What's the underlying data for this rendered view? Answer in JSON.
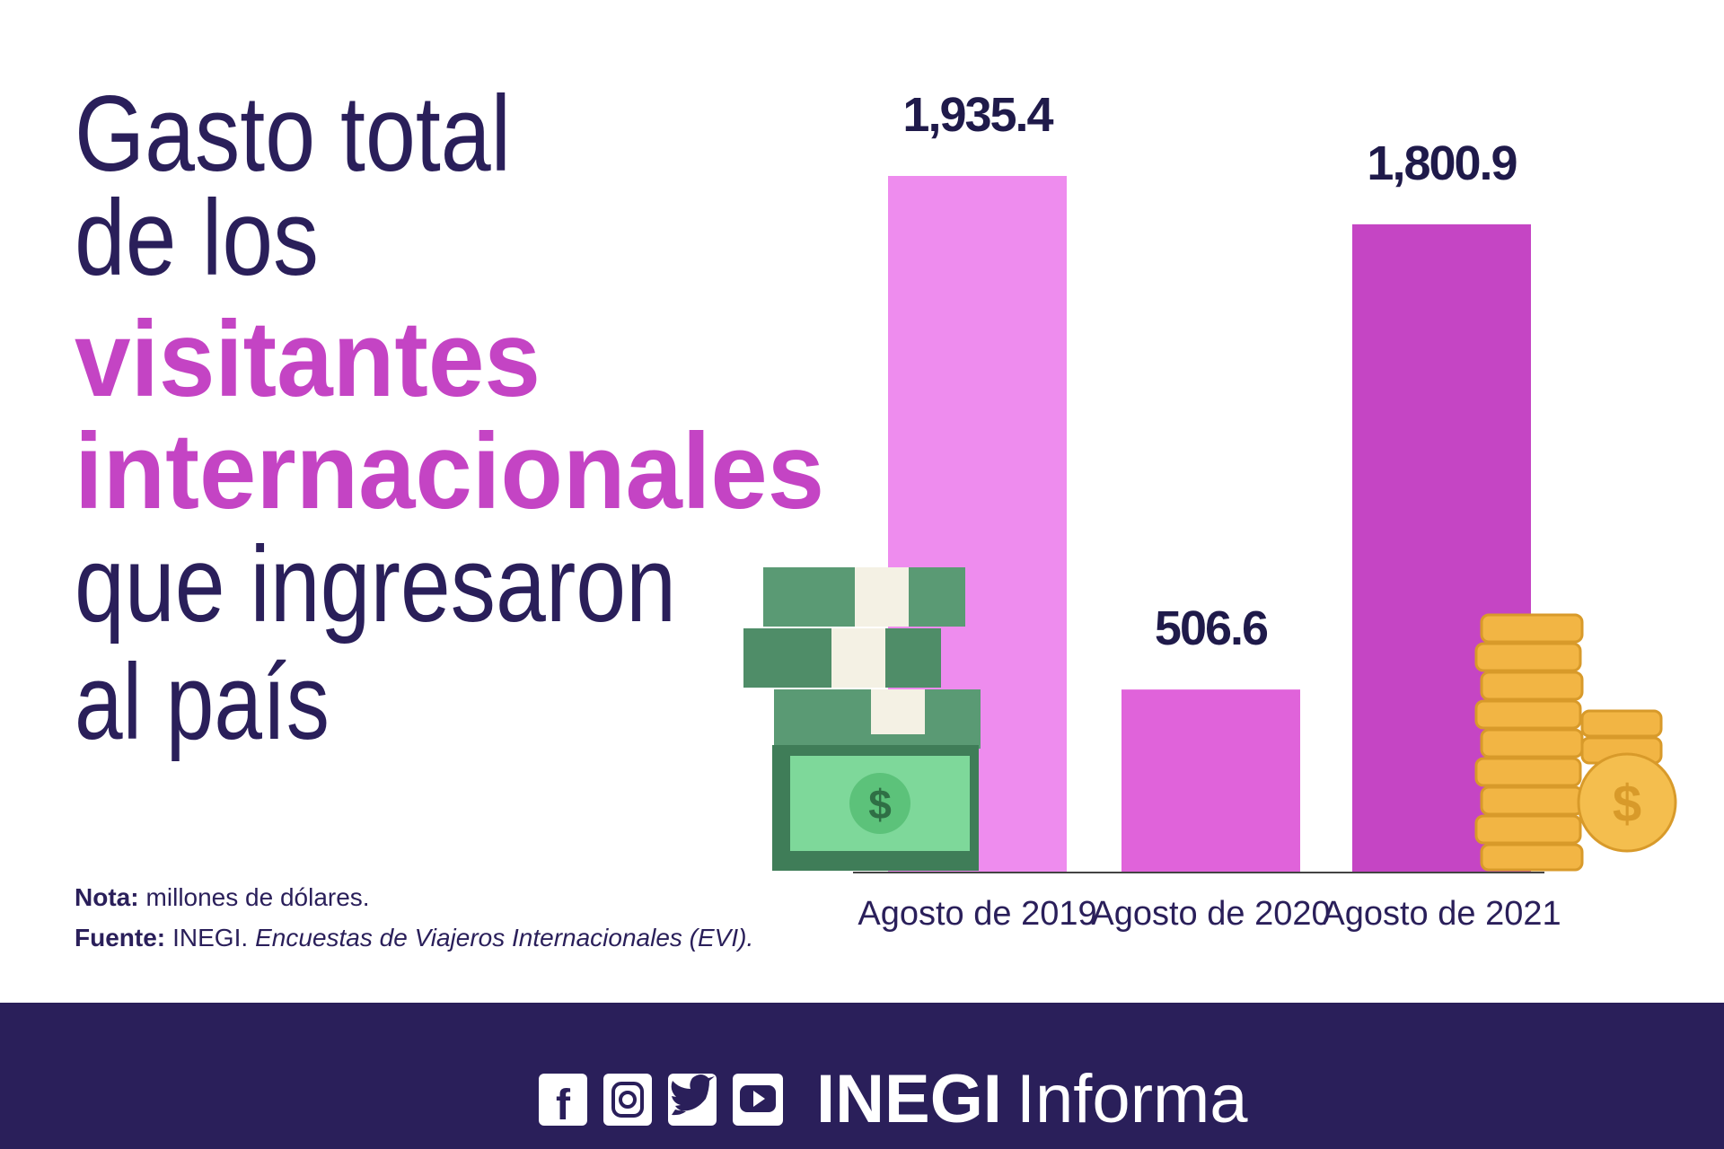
{
  "chart_data": {
    "type": "bar",
    "title_lines": [
      "Gasto total",
      "de los",
      "visitantes",
      "internacionales",
      "que ingresaron",
      "al país"
    ],
    "categories": [
      "Agosto de 2019",
      "Agosto de 2020",
      "Agosto de 2021"
    ],
    "values": [
      1935.4,
      506.6,
      1800.9
    ],
    "value_labels": [
      "1,935.4",
      "506.6",
      "1,800.9"
    ],
    "colors": [
      "#ee8cee",
      "#e063da",
      "#c545c4"
    ],
    "note": {
      "label": "Nota:",
      "text": "millones de dólares."
    },
    "source": {
      "label": "Fuente:",
      "text": "INEGI.",
      "italic": "Encuestas de Viajeros Internacionales (EVI)."
    }
  },
  "footer": {
    "brand": "INEGI",
    "suffix": "Informa"
  }
}
